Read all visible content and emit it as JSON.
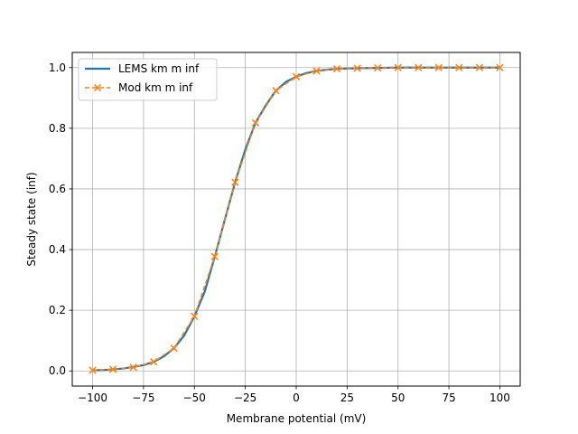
{
  "chart_data": {
    "type": "line",
    "title": "",
    "xlabel": "Membrane potential (mV)",
    "ylabel": "Steady state (inf)",
    "xlim": [
      -110,
      110
    ],
    "ylim": [
      -0.05,
      1.05
    ],
    "xticks": [
      -100,
      -75,
      -50,
      -25,
      0,
      25,
      50,
      75,
      100
    ],
    "xtick_labels": [
      "−100",
      "−75",
      "−50",
      "−25",
      "0",
      "25",
      "50",
      "75",
      "100"
    ],
    "yticks": [
      0.0,
      0.2,
      0.4,
      0.6,
      0.8,
      1.0
    ],
    "ytick_labels": [
      "0.0",
      "0.2",
      "0.4",
      "0.6",
      "0.8",
      "1.0"
    ],
    "grid": true,
    "legend_position": "upper-left",
    "series": [
      {
        "name": "LEMS km m inf",
        "style": "solid line",
        "color": "#1f77b4",
        "x": [
          -100,
          -95,
          -90,
          -85,
          -80,
          -75,
          -70,
          -65,
          -60,
          -55,
          -50,
          -45,
          -40,
          -35,
          -30,
          -25,
          -20,
          -15,
          -10,
          -5,
          0,
          5,
          10,
          15,
          20,
          25,
          30,
          40,
          50,
          60,
          70,
          80,
          90,
          100
        ],
        "y": [
          0.002,
          0.003,
          0.005,
          0.008,
          0.013,
          0.019,
          0.03,
          0.048,
          0.075,
          0.117,
          0.18,
          0.26,
          0.377,
          0.5,
          0.622,
          0.73,
          0.818,
          0.875,
          0.924,
          0.953,
          0.97,
          0.982,
          0.989,
          0.993,
          0.996,
          0.997,
          0.998,
          0.999,
          1.0,
          1.0,
          1.0,
          1.0,
          1.0,
          1.0
        ]
      },
      {
        "name": "Mod km m inf",
        "style": "dashed line with x markers",
        "color": "#ff7f0e",
        "x": [
          -100,
          -90,
          -80,
          -70,
          -60,
          -50,
          -40,
          -30,
          -20,
          -10,
          0,
          10,
          20,
          30,
          40,
          50,
          60,
          70,
          80,
          90,
          100
        ],
        "y": [
          0.002,
          0.005,
          0.012,
          0.03,
          0.075,
          0.18,
          0.377,
          0.622,
          0.818,
          0.924,
          0.97,
          0.989,
          0.996,
          0.998,
          0.999,
          1.0,
          1.0,
          1.0,
          1.0,
          1.0,
          1.0
        ]
      }
    ]
  }
}
